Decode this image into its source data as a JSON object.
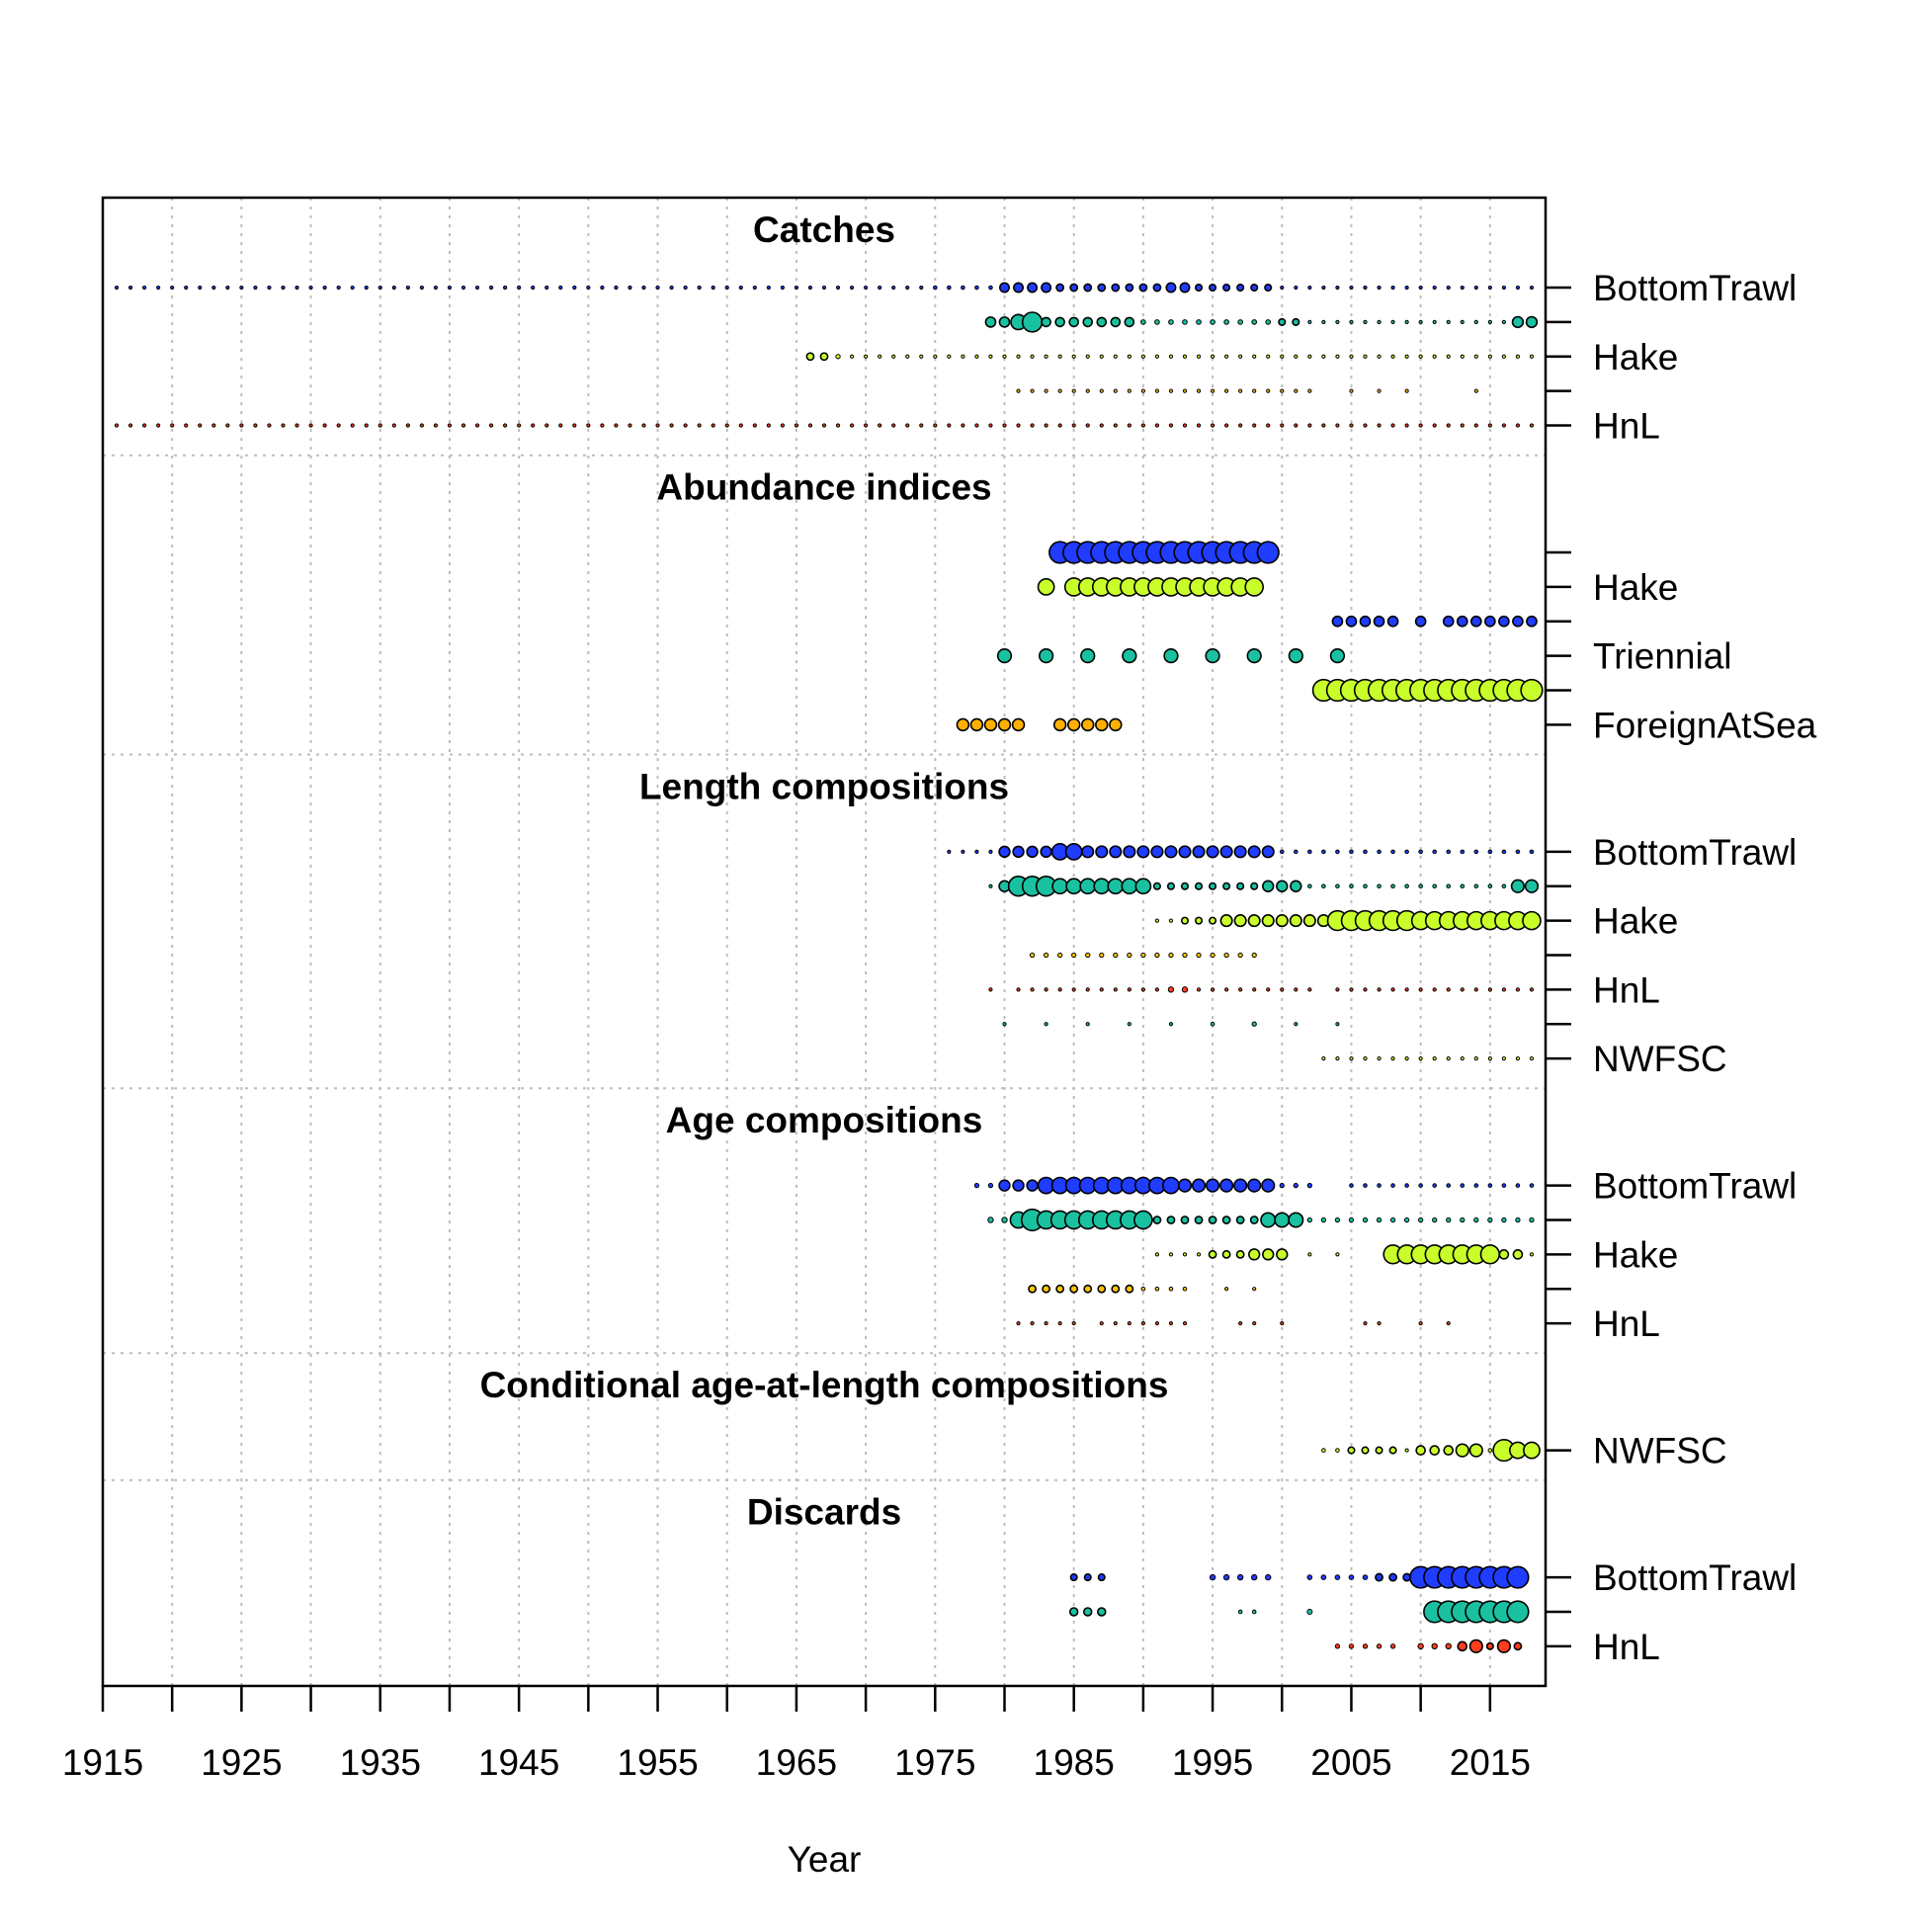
{
  "chart_data": {
    "type": "scatter",
    "xlabel": "Year",
    "xlim": [
      1915,
      2019
    ],
    "x_ticks_labeled": [
      1915,
      1925,
      1935,
      1945,
      1955,
      1965,
      1975,
      1985,
      1995,
      2005,
      2015
    ],
    "x_minor_ticks": [
      1920,
      1930,
      1940,
      1950,
      1960,
      1970,
      1980,
      1990,
      2000,
      2010
    ],
    "grid": true,
    "colors": {
      "BottomTrawl": "#1f3cff",
      "MidwaterTrawl": "#19c1a0",
      "Hake": "#c8ff2a",
      "Net": "#ffc800",
      "HnL": "#ff3d1f",
      "NWFSC": "#c8ff2a",
      "Triennial": "#19c1a0",
      "AKSlope": "#1f3cff",
      "ForeignAtSea": "#ffb000"
    },
    "sections": [
      {
        "title": "Catches",
        "rows": [
          {
            "label": "BottomTrawl",
            "color": "BottomTrawl",
            "runs": [
              [
                1916,
                1942,
                0.06
              ],
              [
                1943,
                1960,
                0.09
              ],
              [
                1961,
                1974,
                0.07
              ],
              [
                1975,
                1979,
                0.1
              ],
              [
                1980,
                1983,
                0.26
              ],
              [
                1984,
                1991,
                0.2
              ],
              [
                1992,
                1993,
                0.26
              ],
              [
                1994,
                1999,
                0.18
              ],
              [
                2000,
                2018,
                0.06
              ]
            ]
          },
          {
            "label": "",
            "color": "MidwaterTrawl",
            "runs": [
              [
                1979,
                1980,
                0.28
              ],
              [
                1981,
                1981,
                0.42
              ],
              [
                1982,
                1982,
                0.55
              ],
              [
                1983,
                1989,
                0.25
              ],
              [
                1990,
                1999,
                0.13
              ],
              [
                2000,
                2001,
                0.18
              ],
              [
                2002,
                2016,
                0.06
              ],
              [
                2017,
                2018,
                0.3
              ]
            ]
          },
          {
            "label": "Hake",
            "color": "Hake",
            "runs": [
              [
                1966,
                1967,
                0.2
              ],
              [
                1968,
                1968,
                0.12
              ],
              [
                1969,
                1990,
                0.06
              ],
              [
                1991,
                1999,
                0.08
              ],
              [
                2000,
                2016,
                0.06
              ],
              [
                2017,
                2018,
                0.08
              ]
            ]
          },
          {
            "label": "",
            "color": "Net",
            "runs": [
              [
                1981,
                2002,
                0.06
              ],
              [
                2005,
                2005,
                0.06
              ],
              [
                2007,
                2007,
                0.06
              ],
              [
                2009,
                2009,
                0.06
              ],
              [
                2014,
                2014,
                0.06
              ]
            ]
          },
          {
            "label": "HnL",
            "color": "HnL",
            "runs": [
              [
                1916,
                2018,
                0.06
              ]
            ]
          }
        ]
      },
      {
        "title": "Abundance indices",
        "rows": [
          {
            "label": "",
            "color": "AKSlope",
            "runs": [
              [
                1984,
                1999,
                0.6
              ]
            ]
          },
          {
            "label": "Hake",
            "color": "Hake",
            "runs": [
              [
                1983,
                1983,
                0.45
              ],
              [
                1985,
                1998,
                0.5
              ]
            ]
          },
          {
            "label": "",
            "color": "AKSlope",
            "runs": [
              [
                2004,
                2008,
                0.28
              ],
              [
                2010,
                2010,
                0.28
              ],
              [
                2012,
                2018,
                0.28
              ]
            ]
          },
          {
            "label": "Triennial",
            "color": "Triennial",
            "runs": [
              [
                1980,
                1980,
                0.38
              ],
              [
                1983,
                1983,
                0.38
              ],
              [
                1986,
                1986,
                0.38
              ],
              [
                1989,
                1989,
                0.38
              ],
              [
                1992,
                1992,
                0.38
              ],
              [
                1995,
                1995,
                0.38
              ],
              [
                1998,
                1998,
                0.38
              ],
              [
                2001,
                2001,
                0.38
              ],
              [
                2004,
                2004,
                0.38
              ]
            ]
          },
          {
            "label": "",
            "color": "Hake",
            "runs": [
              [
                2003,
                2018,
                0.6
              ]
            ]
          },
          {
            "label": "ForeignAtSea",
            "color": "ForeignAtSea",
            "runs": [
              [
                1977,
                1981,
                0.33
              ],
              [
                1984,
                1988,
                0.33
              ]
            ]
          }
        ]
      },
      {
        "title": "Length compositions",
        "rows": [
          {
            "label": "BottomTrawl",
            "color": "BottomTrawl",
            "runs": [
              [
                1976,
                1979,
                0.08
              ],
              [
                1980,
                1983,
                0.3
              ],
              [
                1984,
                1985,
                0.45
              ],
              [
                1986,
                1999,
                0.32
              ],
              [
                2000,
                2018,
                0.1
              ]
            ]
          },
          {
            "label": "",
            "color": "MidwaterTrawl",
            "runs": [
              [
                1979,
                1979,
                0.08
              ],
              [
                1980,
                1980,
                0.3
              ],
              [
                1981,
                1983,
                0.55
              ],
              [
                1984,
                1990,
                0.42
              ],
              [
                1991,
                1998,
                0.18
              ],
              [
                1999,
                2001,
                0.3
              ],
              [
                2002,
                2016,
                0.1
              ],
              [
                2017,
                2018,
                0.35
              ]
            ]
          },
          {
            "label": "Hake",
            "color": "Hake",
            "runs": [
              [
                1991,
                1992,
                0.08
              ],
              [
                1993,
                1995,
                0.18
              ],
              [
                1996,
                2003,
                0.32
              ],
              [
                2004,
                2009,
                0.55
              ],
              [
                2010,
                2018,
                0.5
              ]
            ]
          },
          {
            "label": "",
            "color": "Net",
            "runs": [
              [
                1982,
                1998,
                0.12
              ]
            ]
          },
          {
            "label": "HnL",
            "color": "HnL",
            "runs": [
              [
                1979,
                1979,
                0.06
              ],
              [
                1981,
                1991,
                0.07
              ],
              [
                1992,
                1993,
                0.15
              ],
              [
                1994,
                2002,
                0.07
              ],
              [
                2004,
                2018,
                0.07
              ]
            ]
          },
          {
            "label": "",
            "color": "Triennial",
            "runs": [
              [
                1980,
                1980,
                0.08
              ],
              [
                1983,
                1983,
                0.08
              ],
              [
                1986,
                1986,
                0.08
              ],
              [
                1989,
                1989,
                0.08
              ],
              [
                1992,
                1992,
                0.08
              ],
              [
                1995,
                1995,
                0.1
              ],
              [
                1998,
                1998,
                0.12
              ],
              [
                2001,
                2001,
                0.08
              ],
              [
                2004,
                2004,
                0.08
              ]
            ]
          },
          {
            "label": "NWFSC",
            "color": "NWFSC",
            "runs": [
              [
                2003,
                2018,
                0.08
              ]
            ]
          }
        ]
      },
      {
        "title": "Age compositions",
        "rows": [
          {
            "label": "BottomTrawl",
            "color": "BottomTrawl",
            "runs": [
              [
                1978,
                1979,
                0.12
              ],
              [
                1980,
                1982,
                0.3
              ],
              [
                1983,
                1992,
                0.45
              ],
              [
                1993,
                1999,
                0.35
              ],
              [
                2000,
                2002,
                0.12
              ],
              [
                2005,
                2018,
                0.1
              ]
            ]
          },
          {
            "label": "",
            "color": "MidwaterTrawl",
            "runs": [
              [
                1979,
                1980,
                0.15
              ],
              [
                1981,
                1981,
                0.45
              ],
              [
                1982,
                1982,
                0.6
              ],
              [
                1983,
                1990,
                0.5
              ],
              [
                1991,
                1998,
                0.2
              ],
              [
                1999,
                2001,
                0.4
              ],
              [
                2002,
                2018,
                0.12
              ]
            ]
          },
          {
            "label": "Hake",
            "color": "Hake",
            "runs": [
              [
                1991,
                1994,
                0.08
              ],
              [
                1995,
                1997,
                0.2
              ],
              [
                1998,
                2000,
                0.3
              ],
              [
                2002,
                2002,
                0.06
              ],
              [
                2004,
                2004,
                0.06
              ],
              [
                2008,
                2015,
                0.52
              ],
              [
                2016,
                2017,
                0.25
              ],
              [
                2018,
                2018,
                0.08
              ]
            ]
          },
          {
            "label": "",
            "color": "Net",
            "runs": [
              [
                1982,
                1989,
                0.2
              ],
              [
                1990,
                1993,
                0.1
              ],
              [
                1996,
                1996,
                0.08
              ],
              [
                1998,
                1998,
                0.08
              ]
            ]
          },
          {
            "label": "HnL",
            "color": "HnL",
            "runs": [
              [
                1981,
                1985,
                0.06
              ],
              [
                1987,
                1993,
                0.07
              ],
              [
                1997,
                1998,
                0.07
              ],
              [
                2000,
                2000,
                0.06
              ],
              [
                2006,
                2007,
                0.06
              ],
              [
                2010,
                2010,
                0.06
              ],
              [
                2012,
                2012,
                0.06
              ]
            ]
          }
        ]
      },
      {
        "title": "Conditional age-at-length compositions",
        "rows": [
          {
            "label": "NWFSC",
            "color": "NWFSC",
            "runs": [
              [
                2003,
                2004,
                0.1
              ],
              [
                2005,
                2008,
                0.18
              ],
              [
                2009,
                2009,
                0.08
              ],
              [
                2010,
                2012,
                0.25
              ],
              [
                2013,
                2014,
                0.35
              ],
              [
                2015,
                2015,
                0.1
              ],
              [
                2016,
                2016,
                0.6
              ],
              [
                2017,
                2018,
                0.45
              ]
            ]
          }
        ]
      },
      {
        "title": "Discards",
        "rows": [
          {
            "label": "BottomTrawl",
            "color": "BottomTrawl",
            "runs": [
              [
                1985,
                1987,
                0.18
              ],
              [
                1995,
                1999,
                0.15
              ],
              [
                2002,
                2006,
                0.13
              ],
              [
                2007,
                2009,
                0.2
              ],
              [
                2010,
                2017,
                0.6
              ]
            ]
          },
          {
            "label": "",
            "color": "MidwaterTrawl",
            "runs": [
              [
                1985,
                1987,
                0.22
              ],
              [
                1997,
                1998,
                0.1
              ],
              [
                2002,
                2002,
                0.14
              ],
              [
                2011,
                2017,
                0.6
              ]
            ]
          },
          {
            "label": "HnL",
            "color": "HnL",
            "runs": [
              [
                2004,
                2008,
                0.12
              ],
              [
                2010,
                2012,
                0.15
              ],
              [
                2013,
                2013,
                0.25
              ],
              [
                2014,
                2014,
                0.35
              ],
              [
                2015,
                2015,
                0.18
              ],
              [
                2016,
                2016,
                0.35
              ],
              [
                2017,
                2017,
                0.2
              ]
            ]
          }
        ]
      }
    ]
  }
}
